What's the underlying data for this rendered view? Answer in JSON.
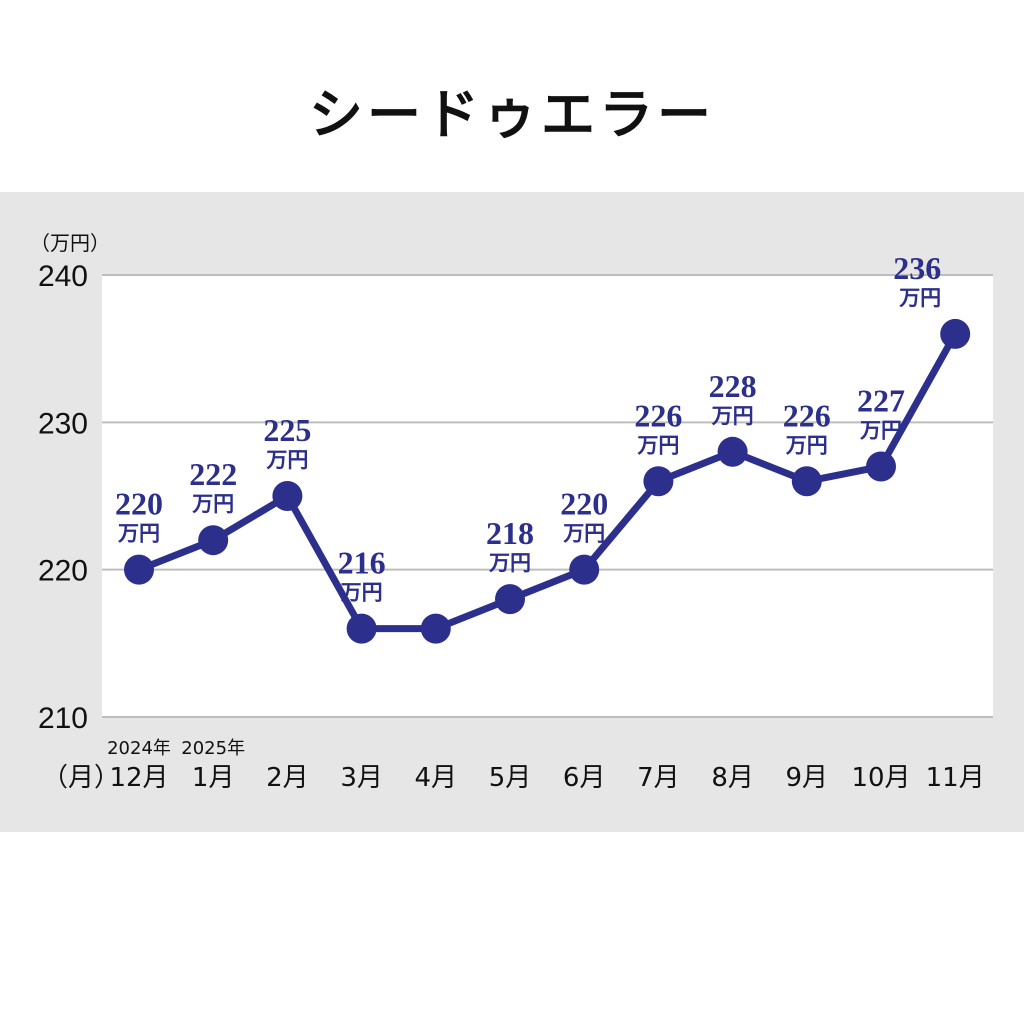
{
  "title": "シードゥエラー",
  "chart_data": {
    "type": "line",
    "y_unit_label": "（万円）",
    "x_unit_label": "（月）",
    "value_unit": "万円",
    "ylim": [
      210,
      240
    ],
    "yticks": [
      210,
      220,
      230,
      240
    ],
    "grid": true,
    "categories": [
      "12月",
      "1月",
      "2月",
      "3月",
      "4月",
      "5月",
      "6月",
      "7月",
      "8月",
      "9月",
      "10月",
      "11月"
    ],
    "year_labels": [
      {
        "category_index": 0,
        "text": "2024年"
      },
      {
        "category_index": 1,
        "text": "2025年"
      }
    ],
    "values": [
      220,
      222,
      225,
      216,
      216,
      218,
      220,
      226,
      228,
      226,
      227,
      236
    ],
    "data_labels": [
      "220",
      "222",
      "225",
      "216",
      "",
      "218",
      "220",
      "226",
      "228",
      "226",
      "227",
      "236"
    ],
    "line_color": "#2c2f8c",
    "label_color": "#2c2f8c"
  }
}
